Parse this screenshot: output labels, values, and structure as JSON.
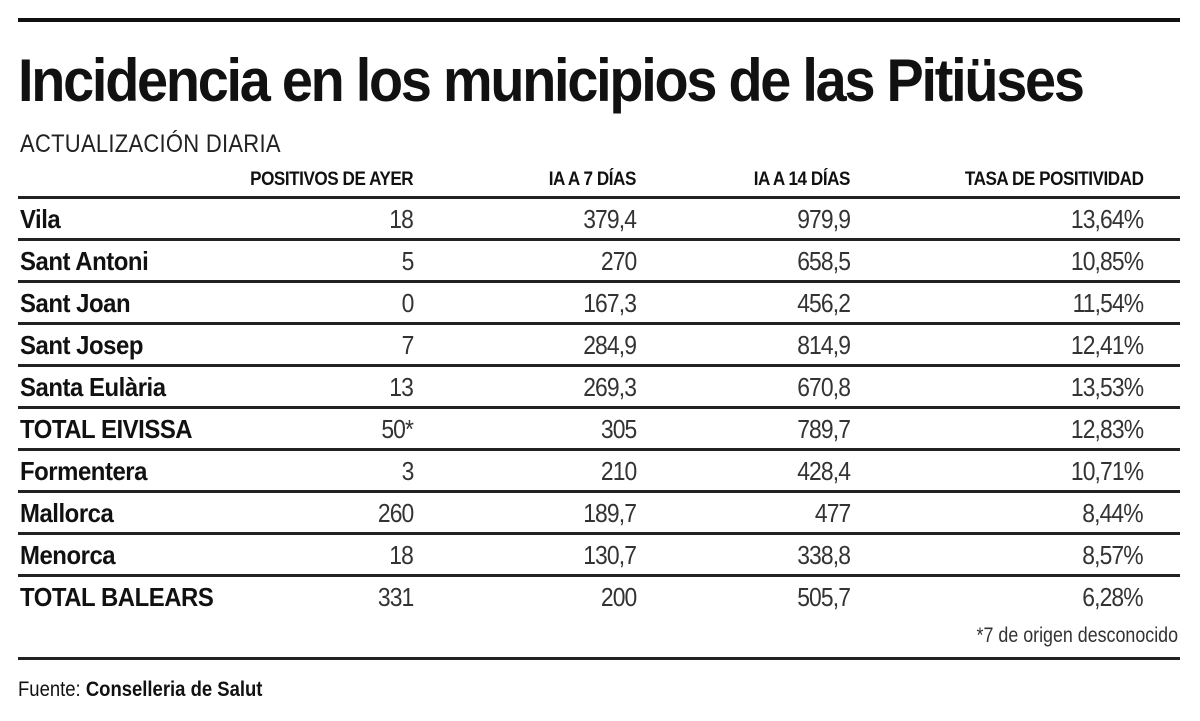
{
  "title": "Incidencia en los municipios de las Pitiüses",
  "subtitle": "ACTUALIZACIÓN DIARIA",
  "chart_data": {
    "type": "table",
    "columns": [
      "",
      "POSITIVOS DE AYER",
      "IA A 7 DÍAS",
      "IA A 14 DÍAS",
      "TASA DE POSITIVIDAD"
    ],
    "rows": [
      {
        "label": "Vila",
        "values": [
          "18",
          "379,4",
          "979,9",
          "13,64%"
        ]
      },
      {
        "label": "Sant Antoni",
        "values": [
          "5",
          "270",
          "658,5",
          "10,85%"
        ]
      },
      {
        "label": "Sant Joan",
        "values": [
          "0",
          "167,3",
          "456,2",
          "11,54%"
        ]
      },
      {
        "label": "Sant Josep",
        "values": [
          "7",
          "284,9",
          "814,9",
          "12,41%"
        ]
      },
      {
        "label": "Santa Eulària",
        "values": [
          "13",
          "269,3",
          "670,8",
          "13,53%"
        ]
      },
      {
        "label": "TOTAL EIVISSA",
        "values": [
          "50*",
          "305",
          "789,7",
          "12,83%"
        ]
      },
      {
        "label": "Formentera",
        "values": [
          "3",
          "210",
          "428,4",
          "10,71%"
        ]
      },
      {
        "label": "Mallorca",
        "values": [
          "260",
          "189,7",
          "477",
          "8,44%"
        ]
      },
      {
        "label": "Menorca",
        "values": [
          "18",
          "130,7",
          "338,8",
          "8,57%"
        ]
      },
      {
        "label": "TOTAL BALEARS",
        "values": [
          "331",
          "200",
          "505,7",
          "6,28%"
        ]
      }
    ],
    "footnote": "*7 de origen desconocido"
  },
  "source": {
    "prefix": "Fuente:",
    "name": "Conselleria de Salut"
  }
}
